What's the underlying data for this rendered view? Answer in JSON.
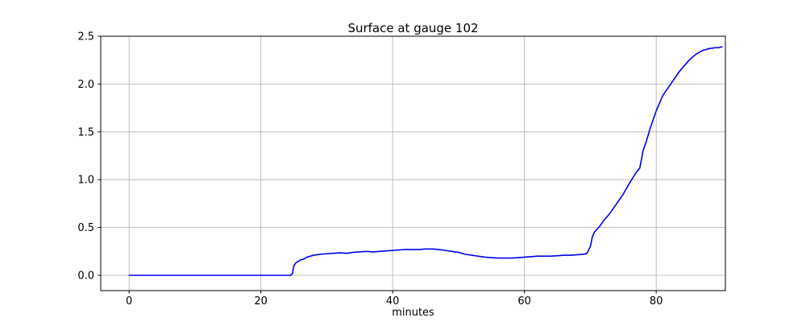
{
  "chart_data": {
    "type": "line",
    "title": "Surface at gauge 102",
    "xlabel": "minutes",
    "ylabel": "",
    "xlim": [
      -4.3,
      90.5
    ],
    "ylim": [
      -0.16,
      2.5
    ],
    "xticks": [
      0,
      20,
      40,
      60,
      80
    ],
    "yticks": [
      0.0,
      0.5,
      1.0,
      1.5,
      2.0,
      2.5
    ],
    "grid": true,
    "grid_color": "#b0b0b0",
    "line_color": "#0000ee",
    "spine_color": "#000000",
    "series": [
      {
        "name": "surface",
        "points": [
          [
            0,
            0
          ],
          [
            2,
            0
          ],
          [
            4,
            0
          ],
          [
            6,
            0
          ],
          [
            8,
            0
          ],
          [
            10,
            0
          ],
          [
            12,
            0
          ],
          [
            14,
            0
          ],
          [
            16,
            0
          ],
          [
            18,
            0
          ],
          [
            20,
            0
          ],
          [
            22,
            0
          ],
          [
            24,
            0
          ],
          [
            24.5,
            0
          ],
          [
            24.8,
            0.02
          ],
          [
            25,
            0.1
          ],
          [
            25.3,
            0.13
          ],
          [
            26,
            0.16
          ],
          [
            26.5,
            0.17
          ],
          [
            27,
            0.19
          ],
          [
            27.5,
            0.2
          ],
          [
            28,
            0.21
          ],
          [
            29,
            0.22
          ],
          [
            30,
            0.225
          ],
          [
            31,
            0.23
          ],
          [
            32,
            0.235
          ],
          [
            33,
            0.23
          ],
          [
            34,
            0.24
          ],
          [
            35,
            0.245
          ],
          [
            36,
            0.25
          ],
          [
            37,
            0.245
          ],
          [
            38,
            0.25
          ],
          [
            39,
            0.255
          ],
          [
            40,
            0.26
          ],
          [
            41,
            0.265
          ],
          [
            42,
            0.27
          ],
          [
            43,
            0.27
          ],
          [
            44,
            0.27
          ],
          [
            45,
            0.275
          ],
          [
            46,
            0.275
          ],
          [
            47,
            0.27
          ],
          [
            48,
            0.26
          ],
          [
            49,
            0.25
          ],
          [
            50,
            0.24
          ],
          [
            51,
            0.22
          ],
          [
            52,
            0.21
          ],
          [
            53,
            0.2
          ],
          [
            54,
            0.19
          ],
          [
            55,
            0.185
          ],
          [
            56,
            0.18
          ],
          [
            57,
            0.18
          ],
          [
            58,
            0.18
          ],
          [
            59,
            0.185
          ],
          [
            60,
            0.19
          ],
          [
            61,
            0.195
          ],
          [
            62,
            0.2
          ],
          [
            63,
            0.2
          ],
          [
            64,
            0.2
          ],
          [
            65,
            0.205
          ],
          [
            66,
            0.21
          ],
          [
            67,
            0.21
          ],
          [
            68,
            0.215
          ],
          [
            69,
            0.22
          ],
          [
            69.5,
            0.23
          ],
          [
            70,
            0.3
          ],
          [
            70.3,
            0.4
          ],
          [
            70.6,
            0.45
          ],
          [
            71,
            0.48
          ],
          [
            71.5,
            0.52
          ],
          [
            72,
            0.57
          ],
          [
            73,
            0.65
          ],
          [
            74,
            0.75
          ],
          [
            75,
            0.85
          ],
          [
            76,
            0.97
          ],
          [
            77,
            1.08
          ],
          [
            77.5,
            1.12
          ],
          [
            78,
            1.3
          ],
          [
            78.5,
            1.4
          ],
          [
            79,
            1.52
          ],
          [
            79.5,
            1.62
          ],
          [
            80,
            1.72
          ],
          [
            80.5,
            1.8
          ],
          [
            81,
            1.88
          ],
          [
            81.5,
            1.93
          ],
          [
            82,
            1.98
          ],
          [
            82.5,
            2.03
          ],
          [
            83,
            2.08
          ],
          [
            83.5,
            2.13
          ],
          [
            84,
            2.17
          ],
          [
            84.5,
            2.21
          ],
          [
            85,
            2.25
          ],
          [
            85.5,
            2.28
          ],
          [
            86,
            2.31
          ],
          [
            86.5,
            2.33
          ],
          [
            87,
            2.35
          ],
          [
            87.5,
            2.36
          ],
          [
            88,
            2.37
          ],
          [
            88.5,
            2.375
          ],
          [
            89,
            2.38
          ],
          [
            89.5,
            2.38
          ],
          [
            90,
            2.39
          ]
        ]
      }
    ]
  }
}
